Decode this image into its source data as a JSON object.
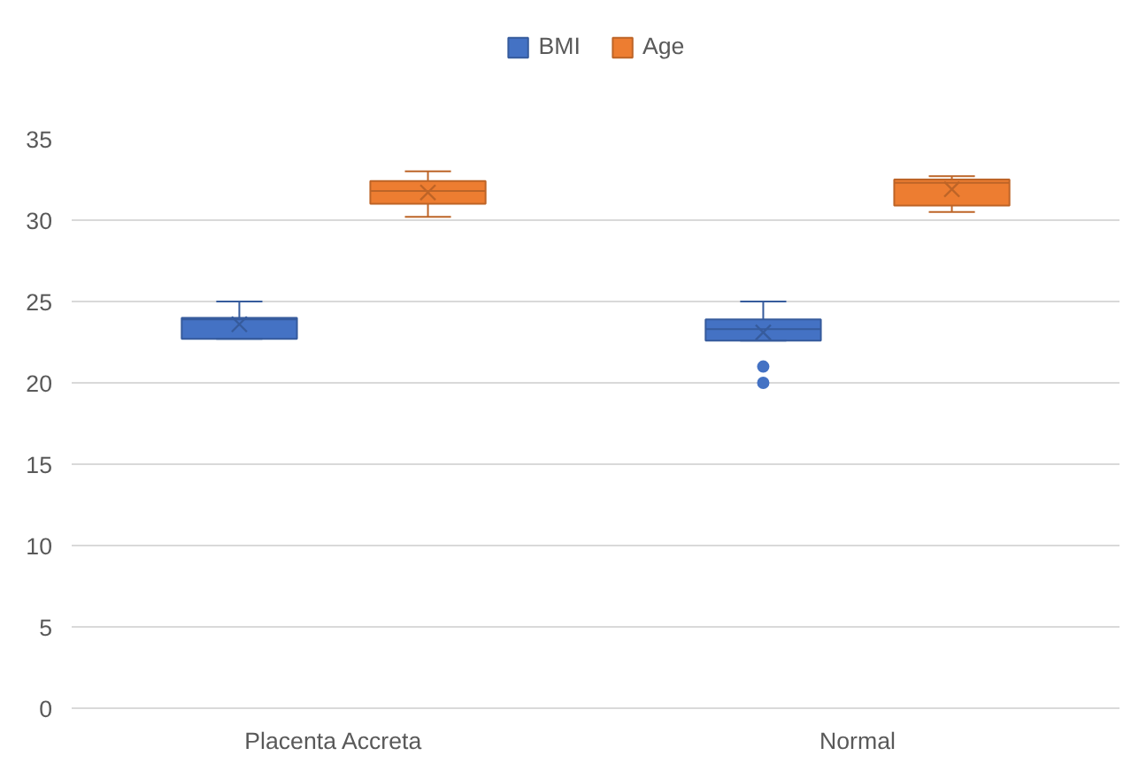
{
  "chart_data": {
    "type": "box",
    "categories": [
      "Placenta Accreta",
      "Normal"
    ],
    "ylim": [
      0,
      35
    ],
    "yticks": [
      0,
      5,
      10,
      15,
      20,
      25,
      30,
      35
    ],
    "grid": "y",
    "legend": "top",
    "series": [
      {
        "name": "BMI",
        "color": "#4472c4",
        "boxes": [
          {
            "low": 22.7,
            "q1": 22.7,
            "median": 23.9,
            "q3": 24.0,
            "high": 25,
            "mean": 23.6
          },
          {
            "low": 22.6,
            "q1": 22.6,
            "median": 23.3,
            "q3": 23.9,
            "high": 25,
            "mean": 23.1,
            "outliers": [
              21,
              20
            ]
          }
        ]
      },
      {
        "name": "Age",
        "color": "#ed7d31",
        "boxes": [
          {
            "low": 30.2,
            "q1": 31.0,
            "median": 31.8,
            "q3": 32.4,
            "high": 33.0,
            "mean": 31.7
          },
          {
            "low": 30.5,
            "q1": 30.9,
            "median": 32.3,
            "q3": 32.5,
            "high": 32.7,
            "mean": 31.9
          }
        ]
      }
    ]
  }
}
